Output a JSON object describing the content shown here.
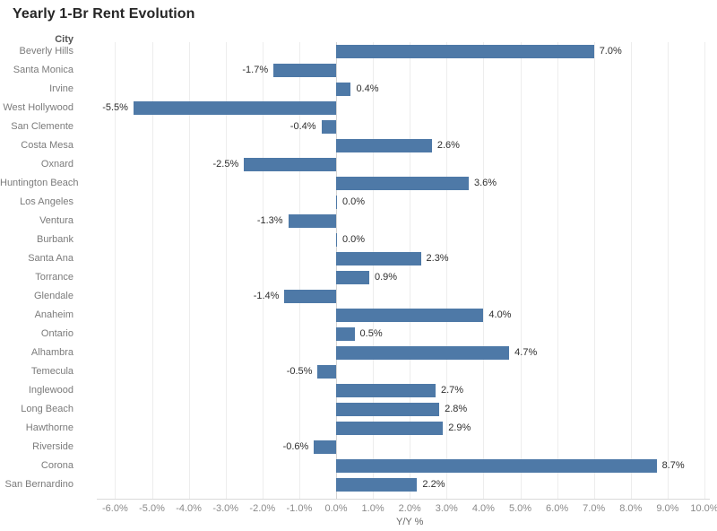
{
  "title": "Yearly 1-Br Rent Evolution",
  "column_header": "City",
  "axis": {
    "label": "Y/Y %",
    "ticks": [
      "-6.0%",
      "-5.0%",
      "-4.0%",
      "-3.0%",
      "-2.0%",
      "-1.0%",
      "0.0%",
      "1.0%",
      "2.0%",
      "3.0%",
      "4.0%",
      "5.0%",
      "6.0%",
      "7.0%",
      "8.0%",
      "9.0%",
      "10.0%"
    ]
  },
  "chart_data": {
    "type": "bar",
    "orientation": "horizontal",
    "title": "Yearly 1-Br Rent Evolution",
    "xlabel": "Y/Y %",
    "ylabel": "City",
    "xlim": [
      -6,
      10
    ],
    "grid": true,
    "legend": false,
    "bar_color": "#4e79a7",
    "categories": [
      "Beverly Hills",
      "Santa Monica",
      "Irvine",
      "West Hollywood",
      "San Clemente",
      "Costa Mesa",
      "Oxnard",
      "Huntington Beach",
      "Los Angeles",
      "Ventura",
      "Burbank",
      "Santa Ana",
      "Torrance",
      "Glendale",
      "Anaheim",
      "Ontario",
      "Alhambra",
      "Temecula",
      "Inglewood",
      "Long Beach",
      "Hawthorne",
      "Riverside",
      "Corona",
      "San Bernardino"
    ],
    "values": [
      7.0,
      -1.7,
      0.4,
      -5.5,
      -0.4,
      2.6,
      -2.5,
      3.6,
      0.0,
      -1.3,
      0.0,
      2.3,
      0.9,
      -1.4,
      4.0,
      0.5,
      4.7,
      -0.5,
      2.7,
      2.8,
      2.9,
      -0.6,
      8.7,
      2.2
    ],
    "labels": [
      "7.0%",
      "-1.7%",
      "0.4%",
      "-5.5%",
      "-0.4%",
      "2.6%",
      "-2.5%",
      "3.6%",
      "0.0%",
      "-1.3%",
      "0.0%",
      "2.3%",
      "0.9%",
      "-1.4%",
      "4.0%",
      "0.5%",
      "4.7%",
      "-0.5%",
      "2.7%",
      "2.8%",
      "2.9%",
      "-0.6%",
      "8.7%",
      "2.2%"
    ]
  }
}
